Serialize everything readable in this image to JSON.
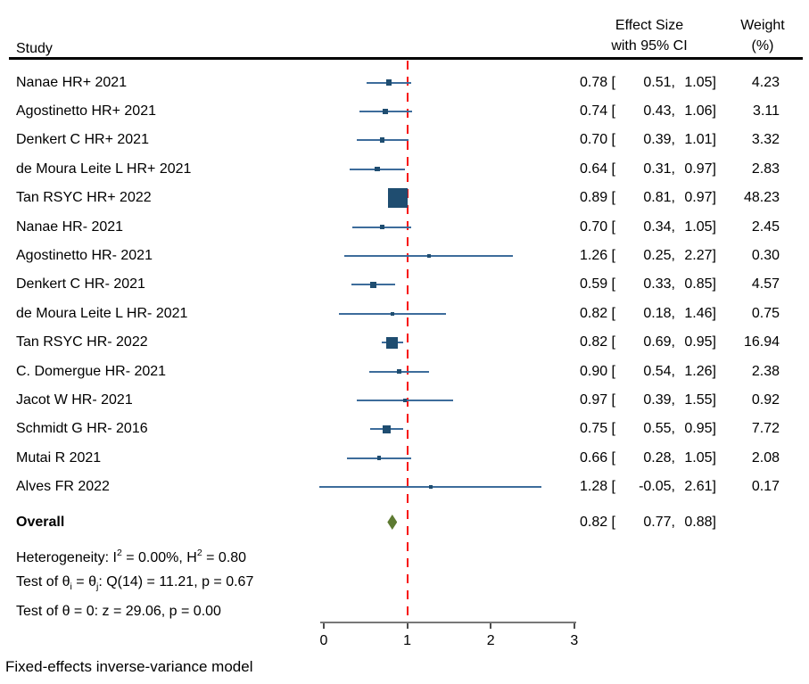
{
  "header": {
    "study": "Study",
    "effect_line1": "Effect Size",
    "effect_line2": "with 95% CI",
    "weight_line1": "Weight",
    "weight_line2": "(%)"
  },
  "chart_data": {
    "type": "scatter",
    "subtype": "forest-plot",
    "x_axis": {
      "min": 0,
      "max": 3,
      "ticks": [
        0,
        1,
        2,
        3
      ],
      "reference_line": 1
    },
    "grid": false,
    "studies": [
      {
        "label": "Nanae HR+ 2021",
        "effect": 0.78,
        "lower": 0.51,
        "upper": 1.05,
        "weight": 4.23
      },
      {
        "label": "Agostinetto HR+ 2021",
        "effect": 0.74,
        "lower": 0.43,
        "upper": 1.06,
        "weight": 3.11
      },
      {
        "label": "Denkert C HR+ 2021",
        "effect": 0.7,
        "lower": 0.39,
        "upper": 1.01,
        "weight": 3.32
      },
      {
        "label": "de Moura Leite L HR+ 2021",
        "effect": 0.64,
        "lower": 0.31,
        "upper": 0.97,
        "weight": 2.83
      },
      {
        "label": "Tan RSYC HR+ 2022",
        "effect": 0.89,
        "lower": 0.81,
        "upper": 0.97,
        "weight": 48.23
      },
      {
        "label": "Nanae HR- 2021",
        "effect": 0.7,
        "lower": 0.34,
        "upper": 1.05,
        "weight": 2.45
      },
      {
        "label": "Agostinetto HR- 2021",
        "effect": 1.26,
        "lower": 0.25,
        "upper": 2.27,
        "weight": 0.3
      },
      {
        "label": "Denkert C HR- 2021",
        "effect": 0.59,
        "lower": 0.33,
        "upper": 0.85,
        "weight": 4.57
      },
      {
        "label": "de Moura Leite L HR- 2021",
        "effect": 0.82,
        "lower": 0.18,
        "upper": 1.46,
        "weight": 0.75
      },
      {
        "label": "Tan RSYC HR- 2022",
        "effect": 0.82,
        "lower": 0.69,
        "upper": 0.95,
        "weight": 16.94
      },
      {
        "label": "C. Domergue HR- 2021",
        "effect": 0.9,
        "lower": 0.54,
        "upper": 1.26,
        "weight": 2.38
      },
      {
        "label": "Jacot W HR- 2021",
        "effect": 0.97,
        "lower": 0.39,
        "upper": 1.55,
        "weight": 0.92
      },
      {
        "label": "Schmidt G HR- 2016",
        "effect": 0.75,
        "lower": 0.55,
        "upper": 0.95,
        "weight": 7.72
      },
      {
        "label": "Mutai R 2021",
        "effect": 0.66,
        "lower": 0.28,
        "upper": 1.05,
        "weight": 2.08
      },
      {
        "label": "Alves FR 2022",
        "effect": 1.28,
        "lower": -0.05,
        "upper": 2.61,
        "weight": 0.17
      }
    ],
    "overall": {
      "label": "Overall",
      "effect": 0.82,
      "lower": 0.77,
      "upper": 0.88
    },
    "stats": [
      {
        "segments": [
          {
            "t": "Heterogeneity: I"
          },
          {
            "sup": "2"
          },
          {
            "t": " = 0.00%, H"
          },
          {
            "sup": "2"
          },
          {
            "t": " = 0.80"
          }
        ]
      },
      {
        "segments": [
          {
            "t": "Test of θ"
          },
          {
            "sub": "i"
          },
          {
            "t": " = θ"
          },
          {
            "sub": "j"
          },
          {
            "t": ": Q(14) = 11.21, p = 0.67"
          }
        ]
      },
      {
        "segments": [
          {
            "t": "Test of θ = 0: z = 29.06, p = 0.00"
          }
        ]
      }
    ],
    "footnote": "Fixed-effects inverse-variance model"
  },
  "colors": {
    "marker": "#1f4d70",
    "ci_line": "#3d6c9b",
    "reference_line": "#f8100e",
    "diamond": "#5d7a31",
    "axis": "#787878",
    "header_rule": "#000000"
  }
}
